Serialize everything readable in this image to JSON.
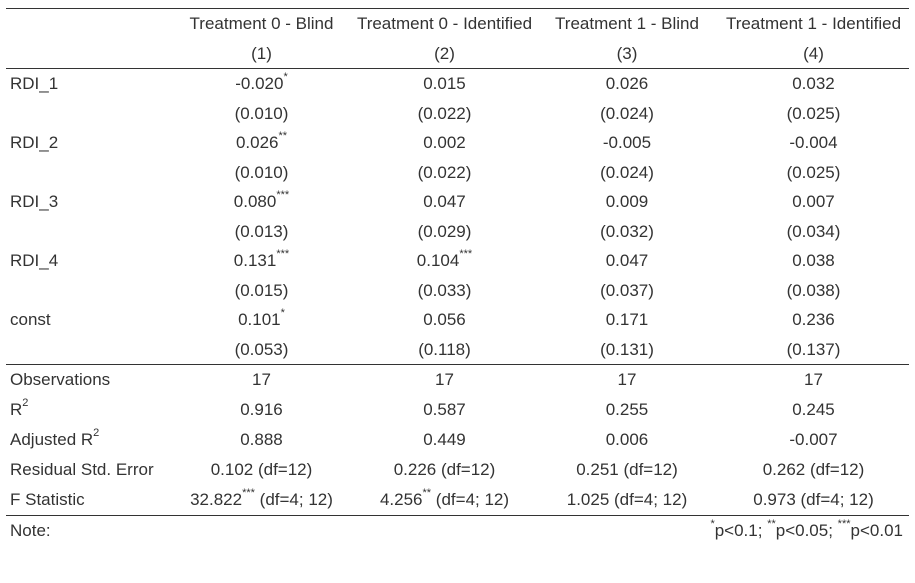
{
  "header": {
    "columns": [
      "Treatment 0 - Blind",
      "Treatment 0 - Identified",
      "Treatment 1 - Blind",
      "Treatment 1 - Identified"
    ],
    "numbers": [
      "(1)",
      "(2)",
      "(3)",
      "(4)"
    ]
  },
  "coefficients": [
    {
      "name": "RDI_1",
      "est": [
        "-0.020",
        "0.015",
        "0.026",
        "0.032"
      ],
      "stars": [
        "*",
        "",
        "",
        ""
      ],
      "se": [
        "(0.010)",
        "(0.022)",
        "(0.024)",
        "(0.025)"
      ]
    },
    {
      "name": "RDI_2",
      "est": [
        "0.026",
        "0.002",
        "-0.005",
        "-0.004"
      ],
      "stars": [
        "**",
        "",
        "",
        ""
      ],
      "se": [
        "(0.010)",
        "(0.022)",
        "(0.024)",
        "(0.025)"
      ]
    },
    {
      "name": "RDI_3",
      "est": [
        "0.080",
        "0.047",
        "0.009",
        "0.007"
      ],
      "stars": [
        "***",
        "",
        "",
        ""
      ],
      "se": [
        "(0.013)",
        "(0.029)",
        "(0.032)",
        "(0.034)"
      ]
    },
    {
      "name": "RDI_4",
      "est": [
        "0.131",
        "0.104",
        "0.047",
        "0.038"
      ],
      "stars": [
        "***",
        "***",
        "",
        ""
      ],
      "se": [
        "(0.015)",
        "(0.033)",
        "(0.037)",
        "(0.038)"
      ]
    },
    {
      "name": "const",
      "est": [
        "0.101",
        "0.056",
        "0.171",
        "0.236"
      ],
      "stars": [
        "*",
        "",
        "",
        ""
      ],
      "se": [
        "(0.053)",
        "(0.118)",
        "(0.131)",
        "(0.137)"
      ]
    }
  ],
  "stats": {
    "observations": {
      "label": "Observations",
      "values": [
        "17",
        "17",
        "17",
        "17"
      ]
    },
    "r2": {
      "label": "R",
      "sup": "2",
      "values": [
        "0.916",
        "0.587",
        "0.255",
        "0.245"
      ]
    },
    "adj_r2": {
      "label": "Adjusted R",
      "sup": "2",
      "values": [
        "0.888",
        "0.449",
        "0.006",
        "-0.007"
      ]
    },
    "rse": {
      "label": "Residual Std. Error",
      "values": [
        "0.102 (df=12)",
        "0.226 (df=12)",
        "0.251 (df=12)",
        "0.262 (df=12)"
      ]
    },
    "fstat": {
      "label": "F Statistic",
      "est": [
        "32.822",
        "4.256",
        "1.025",
        "0.973"
      ],
      "stars": [
        "***",
        "**",
        "",
        ""
      ],
      "df": [
        "(df=4; 12)",
        "(df=4; 12)",
        "(df=4; 12)",
        "(df=4; 12)"
      ]
    }
  },
  "note": {
    "label": "Note:",
    "s1": "*",
    "t1": "p<0.1; ",
    "s2": "**",
    "t2": "p<0.05; ",
    "s3": "***",
    "t3": "p<0.01"
  }
}
